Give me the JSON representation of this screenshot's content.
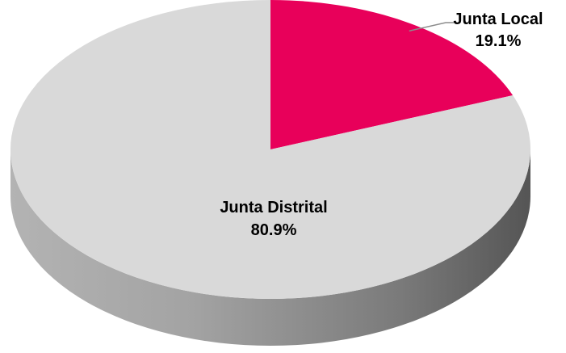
{
  "chart_data": {
    "type": "pie",
    "style": "3d",
    "title": "",
    "slices": [
      {
        "name": "Junta Local",
        "value": 19.1,
        "value_label": "19.1%",
        "color": "#e8005a"
      },
      {
        "name": "Junta Distrital",
        "value": 80.9,
        "value_label": "80.9%",
        "color": "#d9d9d9"
      }
    ]
  }
}
